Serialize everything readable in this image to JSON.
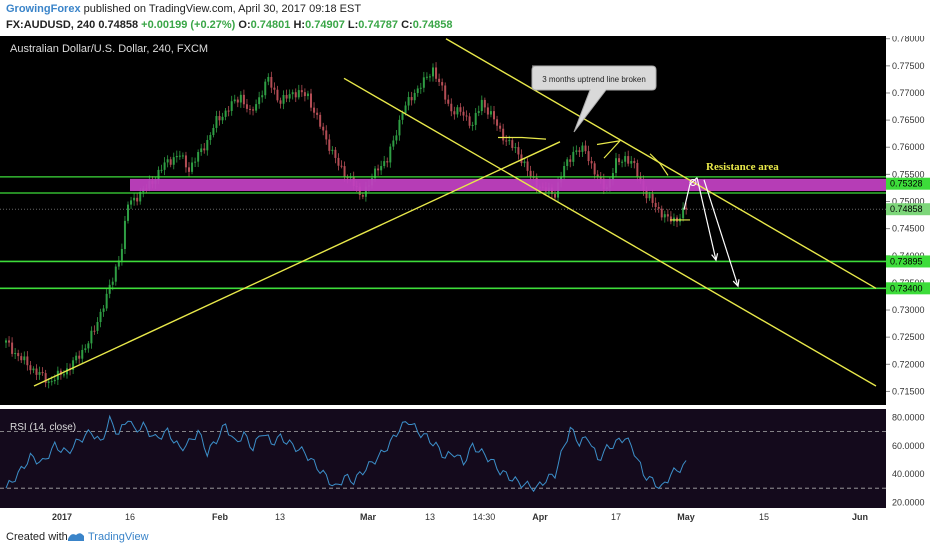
{
  "header": {
    "author": "GrowingForex",
    "published_text": "published on TradingView.com, April 30, 2017 09:18 EST",
    "symbol": "FX:AUDUSD, 240",
    "last": "0.74858",
    "change": "+0.00199 (+0.27%)",
    "open_label": "O:",
    "open": "0.74801",
    "high_label": "H:",
    "high": "0.74907",
    "low_label": "L:",
    "low": "0.74787",
    "close_label": "C:",
    "close": "0.74858"
  },
  "chart_data": [
    {
      "type": "candlestick",
      "title": "Australian Dollar/U.S. Dollar, 240, FXCM",
      "x_tick_labels": [
        "2017",
        "16",
        "Feb",
        "13",
        "Mar",
        "13",
        "14:30",
        "Apr",
        "17",
        "May",
        "15",
        "Jun"
      ],
      "y_tick_labels": [
        "0.78000",
        "0.77500",
        "0.77000",
        "0.76500",
        "0.76000",
        "0.75500",
        "0.75000",
        "0.74500",
        "0.74000",
        "0.73500",
        "0.73000",
        "0.72500",
        "0.72000",
        "0.71500"
      ],
      "ylim": [
        0.7125,
        0.7805
      ],
      "price_path": [
        [
          0,
          0.724
        ],
        [
          4,
          0.7215
        ],
        [
          9,
          0.719
        ],
        [
          14,
          0.7168
        ],
        [
          19,
          0.7185
        ],
        [
          24,
          0.7215
        ],
        [
          29,
          0.7262
        ],
        [
          32,
          0.7312
        ],
        [
          35,
          0.7355
        ],
        [
          38,
          0.7418
        ],
        [
          40,
          0.7495
        ],
        [
          43,
          0.751
        ],
        [
          46,
          0.7525
        ],
        [
          49,
          0.7545
        ],
        [
          53,
          0.7575
        ],
        [
          57,
          0.7585
        ],
        [
          60,
          0.756
        ],
        [
          63,
          0.7585
        ],
        [
          66,
          0.7612
        ],
        [
          69,
          0.7648
        ],
        [
          73,
          0.7672
        ],
        [
          77,
          0.7695
        ],
        [
          80,
          0.766
        ],
        [
          83,
          0.7692
        ],
        [
          86,
          0.7725
        ],
        [
          90,
          0.7682
        ],
        [
          94,
          0.7702
        ],
        [
          99,
          0.7695
        ],
        [
          102,
          0.7652
        ],
        [
          105,
          0.7615
        ],
        [
          109,
          0.7566
        ],
        [
          113,
          0.754
        ],
        [
          116,
          0.7512
        ],
        [
          119,
          0.753
        ],
        [
          122,
          0.7565
        ],
        [
          125,
          0.7575
        ],
        [
          128,
          0.763
        ],
        [
          130,
          0.7666
        ],
        [
          134,
          0.7702
        ],
        [
          137,
          0.772
        ],
        [
          140,
          0.7745
        ],
        [
          143,
          0.7705
        ],
        [
          146,
          0.7668
        ],
        [
          150,
          0.7662
        ],
        [
          153,
          0.764
        ],
        [
          156,
          0.7685
        ],
        [
          160,
          0.765
        ],
        [
          164,
          0.7612
        ],
        [
          168,
          0.759
        ],
        [
          172,
          0.7545
        ],
        [
          176,
          0.7522
        ],
        [
          180,
          0.7515
        ],
        [
          183,
          0.7562
        ],
        [
          186,
          0.7592
        ],
        [
          190,
          0.7595
        ],
        [
          194,
          0.754
        ],
        [
          197,
          0.7526
        ],
        [
          200,
          0.757
        ],
        [
          203,
          0.7582
        ],
        [
          206,
          0.7564
        ],
        [
          210,
          0.751
        ],
        [
          213,
          0.7492
        ],
        [
          217,
          0.7466
        ],
        [
          220,
          0.7468
        ],
        [
          223,
          0.7486
        ]
      ],
      "horizontal_levels": [
        {
          "value": 0.73895,
          "label": "0.73895",
          "color": "#3ddc3a"
        },
        {
          "value": 0.734,
          "label": "0.73400",
          "color": "#3ddc3a"
        }
      ],
      "resistance_zone": {
        "from": 0.7523,
        "to": 0.7538,
        "color": "#c040c0",
        "label": "Resistance area",
        "price_label": "0.75328"
      },
      "current_price": {
        "value": 0.74858,
        "label": "0.74858"
      },
      "annotations": [
        "3 months uptrend line broken",
        "Resistance area"
      ]
    },
    {
      "type": "line",
      "title": "RSI (14, close)",
      "y_tick_labels": [
        "80.0000",
        "60.0000",
        "40.0000",
        "20.0000"
      ],
      "ylim": [
        16,
        86
      ],
      "bands": [
        70,
        30
      ],
      "path": [
        [
          0,
          30
        ],
        [
          4,
          40
        ],
        [
          8,
          52
        ],
        [
          12,
          48
        ],
        [
          16,
          60
        ],
        [
          20,
          55
        ],
        [
          24,
          64
        ],
        [
          28,
          70
        ],
        [
          31,
          62
        ],
        [
          34,
          78
        ],
        [
          37,
          68
        ],
        [
          40,
          80
        ],
        [
          42,
          71
        ],
        [
          45,
          74
        ],
        [
          49,
          65
        ],
        [
          53,
          70
        ],
        [
          57,
          58
        ],
        [
          60,
          62
        ],
        [
          63,
          70
        ],
        [
          66,
          55
        ],
        [
          69,
          64
        ],
        [
          72,
          75
        ],
        [
          75,
          62
        ],
        [
          78,
          68
        ],
        [
          81,
          58
        ],
        [
          84,
          70
        ],
        [
          87,
          62
        ],
        [
          90,
          66
        ],
        [
          94,
          60
        ],
        [
          98,
          55
        ],
        [
          102,
          45
        ],
        [
          105,
          38
        ],
        [
          108,
          30
        ],
        [
          111,
          38
        ],
        [
          114,
          35
        ],
        [
          117,
          42
        ],
        [
          120,
          48
        ],
        [
          123,
          54
        ],
        [
          126,
          62
        ],
        [
          129,
          72
        ],
        [
          132,
          78
        ],
        [
          135,
          70
        ],
        [
          138,
          66
        ],
        [
          141,
          60
        ],
        [
          144,
          52
        ],
        [
          147,
          55
        ],
        [
          150,
          48
        ],
        [
          153,
          60
        ],
        [
          156,
          55
        ],
        [
          159,
          50
        ],
        [
          162,
          42
        ],
        [
          165,
          38
        ],
        [
          168,
          34
        ],
        [
          171,
          32
        ],
        [
          174,
          30
        ],
        [
          177,
          36
        ],
        [
          180,
          40
        ],
        [
          183,
          60
        ],
        [
          185,
          72
        ],
        [
          188,
          62
        ],
        [
          191,
          66
        ],
        [
          194,
          50
        ],
        [
          197,
          58
        ],
        [
          200,
          62
        ],
        [
          203,
          66
        ],
        [
          206,
          56
        ],
        [
          209,
          40
        ],
        [
          212,
          35
        ],
        [
          215,
          30
        ],
        [
          218,
          40
        ],
        [
          221,
          44
        ],
        [
          223,
          47
        ]
      ]
    }
  ],
  "footer": {
    "created_with": "Created with",
    "brand": "TradingView"
  },
  "colors": {
    "background": "#000000",
    "bull": "#2f9e44",
    "bear": "#b44d55",
    "trendline": "#e8e84a",
    "level": "#3ddc3a",
    "rsi": "#3c8fc9"
  }
}
